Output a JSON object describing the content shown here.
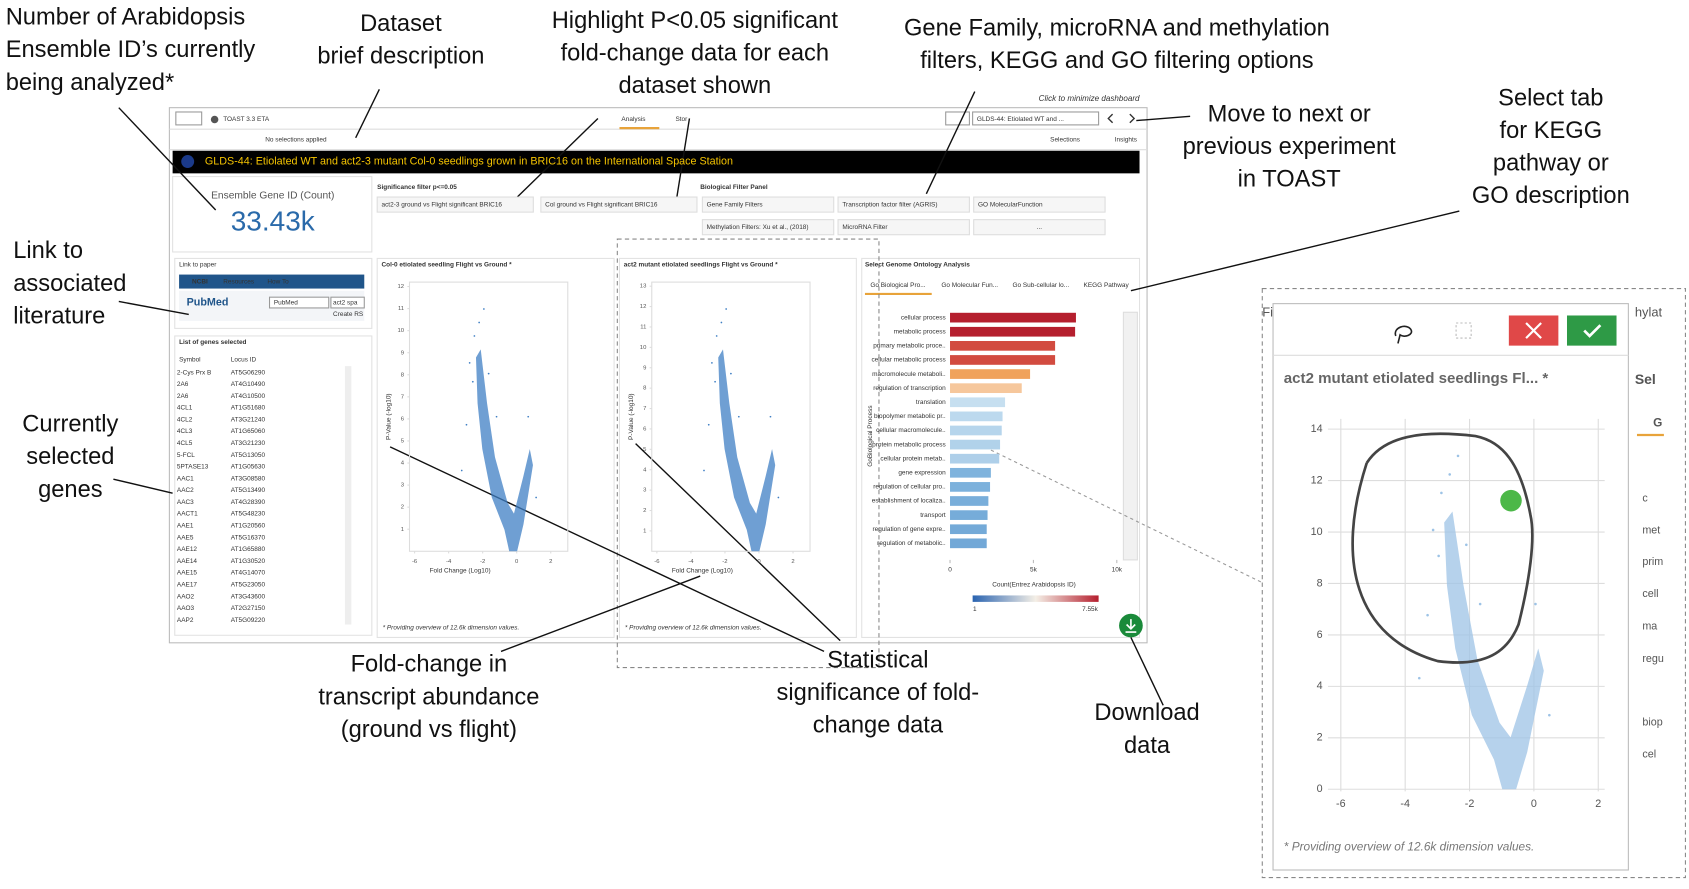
{
  "annotations": [
    [
      "Number of Arabidopsis",
      "Ensemble ID’s currently",
      "being analyzed*"
    ],
    [
      "Dataset",
      "brief description"
    ],
    [
      "Highlight P<0.05 significant",
      "fold-change data for each",
      "dataset shown"
    ],
    [
      "Gene Family, microRNA and methylation",
      "filters, KEGG and GO filtering options"
    ],
    [
      "Move to next or",
      "previous experiment",
      "in TOAST"
    ],
    [
      "Select tab",
      "for KEGG",
      "pathway  or",
      "GO description"
    ],
    [
      "Link to",
      "associated",
      "literature"
    ],
    [
      "Currently",
      "selected",
      "genes"
    ],
    [
      "Fold-change in",
      "transcript abundance",
      "(ground vs flight)"
    ],
    [
      "Statistical",
      "significance of fold-",
      "change data"
    ],
    [
      "Download",
      "data"
    ]
  ],
  "toolbar": {
    "app": "TOAST 3.3 ETA",
    "tabs": [
      "Analysis",
      "Stor"
    ],
    "minimize": "Click to minimize dashboard",
    "dataset_dropdown": "GLDS-44: Etiolated WT and ...",
    "no_selections": "No selections applied",
    "selections": "Selections",
    "insights": "Insights"
  },
  "banner": "GLDS-44: Etiolated WT and act2-3 mutant Col-0 seedlings grown in BRIC16 on the International Space Station",
  "kpi": {
    "label": "Ensemble Gene ID (Count)",
    "value": "33.43k"
  },
  "significance_filter": {
    "title": "Significance filter p<=0.05",
    "buttons": [
      "act2-3 ground vs Flight significant BRIC16",
      "Col ground vs Flight significant BRIC16"
    ]
  },
  "bio_filter": {
    "title": "Biological Filter Panel",
    "buttons": [
      "Gene Family Filters",
      "Transcription factor filter (AGRIS)",
      "GO MolecularFunction",
      "Methylation Filters: Xu et al., (2018)",
      "MicroRNA Filter",
      "..."
    ]
  },
  "link_to_paper": {
    "title": "Link to paper",
    "ncbi": "NCBI",
    "resources": "Resources",
    "how_to": "How To",
    "pubmed": "PubMed",
    "db": "PubMed",
    "search": "act2 spa",
    "create": "Create RS"
  },
  "gene_list": {
    "title": "List of genes selected",
    "headers": [
      "Symbol",
      "Locus ID"
    ],
    "rows": [
      [
        "2-Cys Prx B",
        "AT5G06290"
      ],
      [
        "2A6",
        "AT4G10490"
      ],
      [
        "2A6",
        "AT4G10500"
      ],
      [
        "4CL1",
        "AT1G51680"
      ],
      [
        "4CL2",
        "AT3G21240"
      ],
      [
        "4CL3",
        "AT1G65060"
      ],
      [
        "4CL5",
        "AT3G21230"
      ],
      [
        "5-FCL",
        "AT5G13050"
      ],
      [
        "5PTASE13",
        "AT1G05630"
      ],
      [
        "AAC1",
        "AT3G08580"
      ],
      [
        "AAC2",
        "AT5G13490"
      ],
      [
        "AAC3",
        "AT4G28390"
      ],
      [
        "AACT1",
        "AT5G48230"
      ],
      [
        "AAE1",
        "AT1G20560"
      ],
      [
        "AAE5",
        "AT5G16370"
      ],
      [
        "AAE12",
        "AT1G65880"
      ],
      [
        "AAE14",
        "AT1G30520"
      ],
      [
        "AAE15",
        "AT4G14070"
      ],
      [
        "AAE17",
        "AT5G23050"
      ],
      [
        "AAO2",
        "AT3G43600"
      ],
      [
        "AAO3",
        "AT2G27150"
      ],
      [
        "AAP2",
        "AT5G09220"
      ]
    ]
  },
  "volcano_plots": [
    {
      "title": "Col-0 etiolated seedling Flight vs Ground *",
      "x_label": "Fold Change (Log10)",
      "y_label": "P-Value (-log10)",
      "xlim": [
        -6.3,
        3
      ],
      "ylim": [
        0,
        12.2
      ],
      "xticks": [
        -6,
        -4,
        -2,
        0,
        2
      ],
      "yticks": [
        1,
        2,
        3,
        4,
        5,
        6,
        7,
        8,
        9,
        10,
        11,
        12
      ],
      "footnote": "* Providing overview of 12.6k dimension values."
    },
    {
      "title": "act2 mutant etiolated seedlings Flight vs Ground *",
      "x_label": "Fold Change (Log10)",
      "y_label": "P-Value (-log10)",
      "xlim": [
        -6.3,
        3
      ],
      "ylim": [
        0,
        13.2
      ],
      "xticks": [
        -6,
        -4,
        -2,
        0,
        2
      ],
      "yticks": [
        1,
        2,
        3,
        4,
        5,
        6,
        7,
        8,
        9,
        10,
        11,
        12,
        13
      ],
      "footnote": "* Providing overview of 12.6k dimension values."
    }
  ],
  "go_panel": {
    "title": "Select Genome Ontology Analysis",
    "tabs": [
      "Go Biological Pro...",
      "Go Molecular Fun...",
      "Go Sub-cellular lo...",
      "KEGG Pathway"
    ],
    "y_label": "GoBiological Process",
    "x_label": "Count(Entrez Arabidopsis ID)",
    "categories": [
      "cellular process",
      "metabolic process",
      "primary metabolic proce..",
      "cellular metabolic process",
      "macromolecule metaboli..",
      "regulation of transcription",
      "translation",
      "biopolymer metabolic pr..",
      "cellular macromolecule..",
      "protein metabolic process",
      "cellular protein metab..",
      "gene expression",
      "regulation of cellular pro..",
      "establishment of localiza..",
      "transport",
      "regulation of gene expre..",
      "regulation of metabolic.."
    ],
    "values": [
      7550,
      7500,
      6300,
      6300,
      4800,
      4300,
      3300,
      3150,
      3100,
      3000,
      2950,
      2450,
      2400,
      2300,
      2250,
      2200,
      2200
    ],
    "colors": [
      "#b51f2e",
      "#b51f2e",
      "#d24b40",
      "#d24b40",
      "#f0a25c",
      "#f6c79c",
      "#c6dff0",
      "#bcd9ee",
      "#b6d5ec",
      "#b1d2ea",
      "#aecfe9",
      "#7fb3dd",
      "#7cb1dc",
      "#79aeda",
      "#76acd9",
      "#74aad8",
      "#72a8d7"
    ],
    "xlim": [
      0,
      10200
    ],
    "xticks": [
      0,
      {
        "value": 5000,
        "label": "5k"
      },
      {
        "value": 10000,
        "label": "10k"
      }
    ],
    "color_scale_labels": [
      "1",
      "7.55k"
    ]
  },
  "zoom_panel": {
    "title": "act2 mutant etiolated seedlings Fl...  *",
    "xlim": [
      -6.4,
      2.2
    ],
    "ylim": [
      0,
      14.4
    ],
    "xticks": [
      -6,
      -4,
      -2,
      0,
      2
    ],
    "yticks": [
      0,
      2,
      4,
      6,
      8,
      10,
      12,
      14
    ],
    "grid": true,
    "footnote": "* Providing overview of 12.6k dimension values.",
    "left_fragment": "Fi",
    "right_fragments": [
      "hylat",
      "Sel",
      "G"
    ],
    "side_texts": [
      "c",
      "met",
      "prim",
      "cell",
      "ma",
      "regu",
      "biop",
      "cel"
    ]
  }
}
